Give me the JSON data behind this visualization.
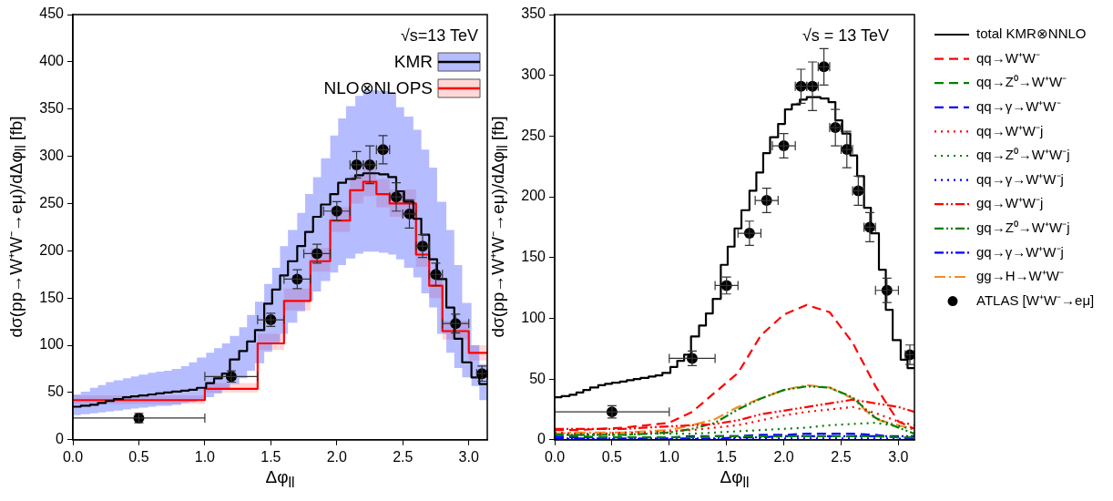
{
  "chart_data": [
    {
      "type": "step",
      "xlabel": "Δφ$_{ll}$",
      "ylabel": "dσ(pp→W⁺W⁻→eμ)/dΔφ$_{ll}$ [fb]",
      "annotations": [
        "√s=13 TeV"
      ],
      "xlim": [
        0,
        3.14
      ],
      "ylim": [
        0,
        450
      ],
      "xticks": [
        {
          "value": 0,
          "label": "0.0"
        },
        {
          "value": 0.5,
          "label": "0.5"
        },
        {
          "value": 1,
          "label": "1.0"
        },
        {
          "value": 1.5,
          "label": "1.5"
        },
        {
          "value": 2,
          "label": "2.0"
        },
        {
          "value": 2.5,
          "label": "2.5"
        },
        {
          "value": 3,
          "label": "3.0"
        }
      ],
      "yticks": [
        0,
        50,
        100,
        150,
        200,
        250,
        300,
        350,
        400,
        450
      ],
      "grid": false,
      "legend": "top right",
      "series": [
        {
          "name": "KMR",
          "color": "#000000",
          "line_style": "solid",
          "x": [
            0,
            0.06,
            0.13,
            0.19,
            0.25,
            0.31,
            0.38,
            0.44,
            0.5,
            0.57,
            0.63,
            0.69,
            0.75,
            0.82,
            0.88,
            0.94,
            1.01,
            1.07,
            1.13,
            1.19,
            1.26,
            1.32,
            1.38,
            1.45,
            1.51,
            1.57,
            1.63,
            1.7,
            1.76,
            1.82,
            1.88,
            1.95,
            2.01,
            2.07,
            2.14,
            2.2,
            2.26,
            2.32,
            2.39,
            2.45,
            2.51,
            2.58,
            2.64,
            2.7,
            2.76,
            2.83,
            2.89,
            2.95,
            3.02,
            3.08,
            3.14
          ],
          "values": [
            35,
            36,
            37,
            39,
            41,
            43,
            45,
            46,
            47,
            48,
            49,
            50,
            51,
            52,
            53,
            55,
            60,
            65,
            70,
            85,
            94,
            104,
            116,
            144,
            159,
            174,
            189,
            205,
            220,
            236,
            249,
            260,
            272,
            276,
            280,
            282,
            282,
            281,
            278,
            263,
            252,
            234,
            217,
            191,
            170,
            140,
            107,
            82,
            66,
            59,
            59
          ],
          "lower": [
            26,
            27,
            28,
            29,
            30,
            31,
            32,
            33,
            34,
            35,
            36,
            36,
            37,
            39,
            40,
            42,
            45,
            49,
            53,
            59,
            65,
            73,
            81,
            93,
            103,
            112,
            124,
            136,
            147,
            157,
            168,
            177,
            185,
            192,
            197,
            199,
            199,
            198,
            196,
            191,
            182,
            172,
            155,
            140,
            112,
            92,
            76,
            66,
            57,
            42,
            42
          ],
          "upper": [
            48,
            51,
            55,
            58,
            61,
            63,
            65,
            67,
            69,
            71,
            72,
            73,
            75,
            78,
            82,
            87,
            92,
            97,
            102,
            110,
            119,
            132,
            146,
            165,
            182,
            205,
            222,
            240,
            260,
            278,
            298,
            322,
            340,
            353,
            364,
            369,
            370,
            369,
            367,
            352,
            342,
            328,
            307,
            288,
            252,
            222,
            185,
            145,
            100,
            80,
            80
          ]
        },
        {
          "name": "NLO⊗NLOPS",
          "color": "#ff0000",
          "line_style": "solid",
          "x": [
            0,
            1.0,
            1.4,
            1.6,
            1.8,
            1.95,
            2.1,
            2.2,
            2.3,
            2.4,
            2.6,
            2.7,
            2.8,
            3.0,
            3.14
          ],
          "values": [
            42,
            54,
            102,
            147,
            189,
            232,
            264,
            273,
            260,
            250,
            196,
            163,
            115,
            92,
            92
          ],
          "lower": [
            38,
            50,
            95,
            137,
            178,
            220,
            250,
            258,
            246,
            236,
            183,
            150,
            106,
            84,
            84
          ],
          "upper": [
            47,
            60,
            112,
            160,
            203,
            246,
            280,
            288,
            276,
            265,
            210,
            177,
            126,
            100,
            100
          ]
        },
        {
          "type": "scatter",
          "color": "#000000",
          "marker": "circle",
          "x": [
            0.5,
            1.2,
            1.5,
            1.7,
            1.85,
            2.0,
            2.15,
            2.25,
            2.35,
            2.45,
            2.55,
            2.65,
            2.75,
            2.9,
            3.1
          ],
          "values": [
            23,
            67,
            127,
            170,
            197,
            242,
            291,
            291,
            307,
            257,
            239,
            205,
            175,
            123,
            70
          ],
          "errors": [
            5,
            6,
            7,
            10,
            10,
            10,
            14,
            20,
            15,
            15,
            15,
            12,
            12,
            10,
            8
          ],
          "xerrors": [
            0.5,
            0.2,
            0.1,
            0.1,
            0.1,
            0.1,
            0.05,
            0.05,
            0.05,
            0.05,
            0.05,
            0.05,
            0.05,
            0.1,
            0.04
          ]
        }
      ]
    },
    {
      "type": "line",
      "xlabel": "Δφ$_{ll}$",
      "ylabel": "dσ(pp→W⁺W⁻→eμ)/dΔφ$_{ll}$ [fb]",
      "annotations": [
        "√s = 13 TeV"
      ],
      "xlim": [
        0,
        3.14
      ],
      "ylim": [
        0,
        350
      ],
      "xticks": [
        {
          "value": 0,
          "label": "0.0"
        },
        {
          "value": 0.5,
          "label": "0.5"
        },
        {
          "value": 1,
          "label": "1.0"
        },
        {
          "value": 1.5,
          "label": "1.5"
        },
        {
          "value": 2,
          "label": "2.0"
        },
        {
          "value": 2.5,
          "label": "2.5"
        },
        {
          "value": 3,
          "label": "3.0"
        }
      ],
      "yticks": [
        0,
        50,
        100,
        150,
        200,
        250,
        300,
        350
      ],
      "grid": false,
      "legend": "right",
      "x": [
        0,
        0.2,
        0.4,
        0.6,
        0.8,
        1.0,
        1.2,
        1.4,
        1.6,
        1.8,
        2.0,
        2.2,
        2.4,
        2.6,
        2.8,
        3.0,
        3.14
      ],
      "series": [
        {
          "name": "total KMR⊗NNLO",
          "type": "step",
          "color": "#000000",
          "line_style": "solid",
          "x": [
            0,
            0.06,
            0.13,
            0.19,
            0.25,
            0.31,
            0.38,
            0.44,
            0.5,
            0.57,
            0.63,
            0.69,
            0.75,
            0.82,
            0.88,
            0.94,
            1.01,
            1.07,
            1.13,
            1.19,
            1.26,
            1.32,
            1.38,
            1.45,
            1.51,
            1.57,
            1.63,
            1.7,
            1.76,
            1.82,
            1.88,
            1.95,
            2.01,
            2.07,
            2.14,
            2.2,
            2.26,
            2.32,
            2.39,
            2.45,
            2.51,
            2.58,
            2.64,
            2.7,
            2.76,
            2.83,
            2.89,
            2.95,
            3.02,
            3.08,
            3.14
          ],
          "values": [
            35,
            36,
            37,
            39,
            41,
            43,
            45,
            46,
            47,
            48,
            49,
            50,
            51,
            52,
            53,
            55,
            60,
            65,
            70,
            85,
            94,
            104,
            116,
            144,
            159,
            174,
            189,
            205,
            220,
            236,
            249,
            260,
            272,
            276,
            280,
            282,
            282,
            281,
            278,
            263,
            252,
            234,
            217,
            191,
            170,
            140,
            107,
            82,
            66,
            59,
            59
          ]
        },
        {
          "name": "qq→W⁺W⁻",
          "color": "#ff0000",
          "line_style": "dashed",
          "values": [
            8,
            8,
            9,
            10,
            12,
            14,
            23,
            39,
            55,
            86,
            103,
            111,
            105,
            80,
            44,
            15,
            9
          ]
        },
        {
          "name": "qq→Z⁰→W⁺W⁻",
          "color": "#008000",
          "line_style": "dashed",
          "values": [
            4.5,
            3,
            2,
            2,
            2,
            2,
            2,
            3,
            3,
            3,
            3,
            3,
            3,
            3,
            3,
            2,
            2
          ]
        },
        {
          "name": "qq→γ→W⁺W⁻",
          "color": "#0000ff",
          "line_style": "dashed",
          "values": [
            2.5,
            2,
            2,
            2,
            2,
            2,
            3,
            3,
            3,
            4,
            4,
            5,
            5,
            5,
            4,
            2,
            1
          ]
        },
        {
          "name": "qq→W⁺W⁻j",
          "color": "#ff0000",
          "line_style": "dotted",
          "values": [
            6,
            5,
            5,
            6,
            6,
            7,
            8,
            10,
            12,
            16,
            20,
            23,
            25,
            27,
            22,
            15,
            12
          ]
        },
        {
          "name": "qq→Z⁰→W⁺W⁻j",
          "color": "#008000",
          "line_style": "dotted",
          "values": [
            4,
            4,
            4,
            4,
            5,
            5,
            5,
            6,
            7,
            8,
            9,
            10,
            12,
            13,
            14,
            11,
            9
          ]
        },
        {
          "name": "qq→γ→W⁺W⁻j",
          "color": "#0000ff",
          "line_style": "dotted",
          "values": [
            0.5,
            0.5,
            0.5,
            0.5,
            0.5,
            0.5,
            0.5,
            0.5,
            1,
            1,
            1,
            1,
            1,
            1,
            1,
            1,
            0.5
          ]
        },
        {
          "name": "gq→W⁺W⁻j",
          "color": "#ff0000",
          "line_style": "dashdotdot",
          "values": [
            9,
            9,
            9,
            9,
            10,
            11,
            12,
            13,
            16,
            21,
            24,
            27,
            30,
            33,
            30,
            27,
            23
          ]
        },
        {
          "name": "gq→Z⁰→W⁺W⁻j",
          "color": "#008000",
          "line_style": "dashdotdot",
          "values": [
            4,
            4,
            4,
            4,
            5,
            6,
            9,
            14,
            25,
            34,
            41,
            44,
            43,
            35,
            18,
            10,
            5
          ]
        },
        {
          "name": "gq→γ→W⁺W⁻j",
          "color": "#0000ff",
          "line_style": "dashdotdot",
          "values": [
            1,
            1,
            1,
            1,
            1,
            1,
            1,
            1,
            2,
            2,
            3,
            3,
            3,
            3,
            3,
            3,
            3
          ]
        },
        {
          "name": "gg→H→W⁺W⁻",
          "color": "#f28c28",
          "line_style": "dashdot",
          "values": [
            5,
            6,
            6,
            6,
            7,
            8,
            12,
            17,
            27,
            34,
            41,
            45,
            43,
            34,
            17,
            12,
            8
          ]
        },
        {
          "name": "ATLAS [W⁺W⁻→eμ]",
          "type": "scatter",
          "color": "#000000",
          "marker": "circle",
          "x": [
            0.5,
            1.2,
            1.5,
            1.7,
            1.85,
            2.0,
            2.15,
            2.25,
            2.35,
            2.45,
            2.55,
            2.65,
            2.75,
            2.9,
            3.1
          ],
          "values": [
            23,
            67,
            127,
            170,
            197,
            242,
            291,
            291,
            307,
            257,
            239,
            205,
            175,
            123,
            70
          ],
          "errors": [
            5,
            6,
            7,
            10,
            10,
            10,
            14,
            20,
            15,
            15,
            15,
            12,
            12,
            10,
            8
          ],
          "xerrors": [
            0.5,
            0.2,
            0.1,
            0.1,
            0.1,
            0.1,
            0.05,
            0.05,
            0.05,
            0.05,
            0.05,
            0.05,
            0.05,
            0.1,
            0.04
          ]
        }
      ]
    }
  ]
}
